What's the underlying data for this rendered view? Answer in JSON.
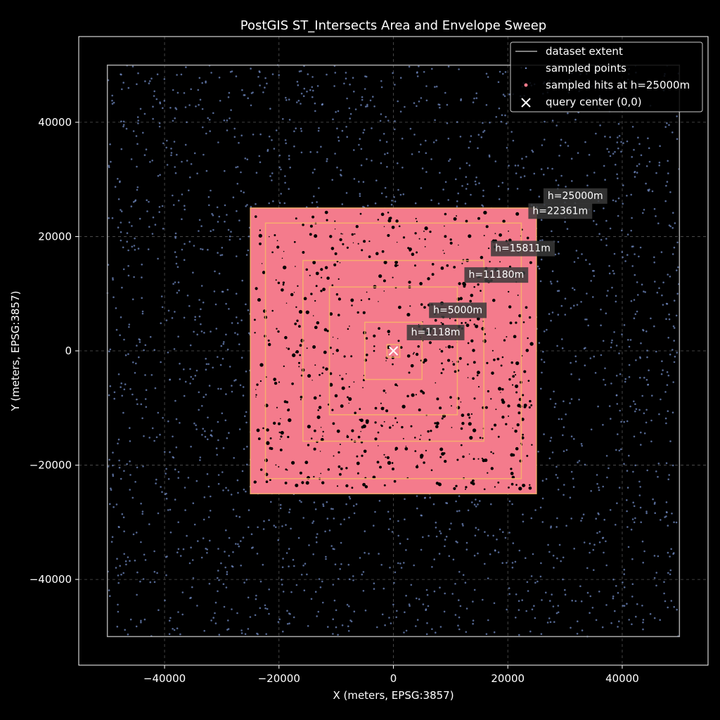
{
  "chart_data": {
    "type": "scatter",
    "title": "PostGIS ST_Intersects Area and Envelope Sweep",
    "xlabel": "X (meters, EPSG:3857)",
    "ylabel": "Y (meters, EPSG:3857)",
    "xlim": [
      -55000,
      55000
    ],
    "ylim": [
      -55000,
      55000
    ],
    "x_ticks": [
      -40000,
      -20000,
      0,
      20000,
      40000
    ],
    "y_ticks": [
      -40000,
      -20000,
      0,
      20000,
      40000
    ],
    "x_tick_labels": [
      "−40000",
      "−20000",
      "0",
      "20000",
      "40000"
    ],
    "y_tick_labels": [
      "−40000",
      "−20000",
      "0",
      "20000",
      "40000"
    ],
    "grid": true,
    "legend_placement": "top-right",
    "dataset_extent": {
      "xmin": -50000,
      "xmax": 50000,
      "ymin": -50000,
      "ymax": 50000
    },
    "query_center": [
      0,
      0
    ],
    "envelopes": [
      {
        "h": 1118,
        "label": "h=1118m"
      },
      {
        "h": 5000,
        "label": "h=5000m"
      },
      {
        "h": 11180,
        "label": "h=11180m"
      },
      {
        "h": 15811,
        "label": "h=15811m"
      },
      {
        "h": 22361,
        "label": "h=22361m"
      },
      {
        "h": 25000,
        "label": "h=25000m"
      }
    ],
    "hit_region_half_size": 25000,
    "series": [
      {
        "name": "dataset extent",
        "kind": "line"
      },
      {
        "name": "sampled points",
        "kind": "scatter"
      },
      {
        "name": "sampled hits at h=25000m",
        "kind": "scatter"
      },
      {
        "name": "query center (0,0)",
        "kind": "marker"
      }
    ],
    "colors": {
      "background": "#000000",
      "extent": "#aaaaaa",
      "points": "#6f88c0",
      "hits": "#f47b8c",
      "envelope": "#f7b26a",
      "label_bg": "#3a3a3a",
      "grid": "#555555",
      "center": "#ffffff"
    }
  }
}
